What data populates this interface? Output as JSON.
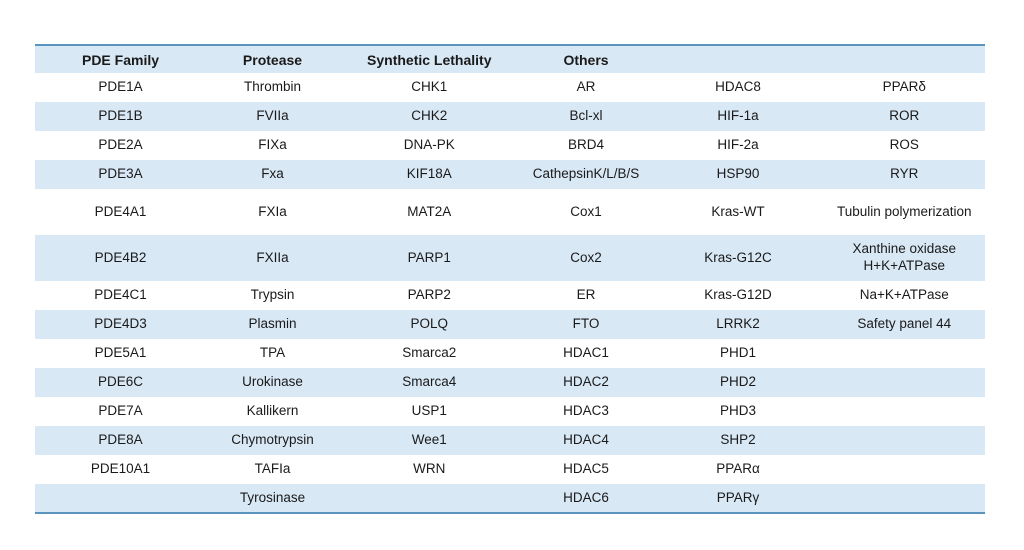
{
  "table": {
    "columns": [
      "PDE Family",
      "Protease",
      "Synthetic Lethality",
      "Others",
      "",
      ""
    ],
    "rows": [
      [
        "PDE1A",
        "Thrombin",
        "CHK1",
        "AR",
        "HDAC8",
        "PPARδ"
      ],
      [
        "PDE1B",
        "FVIIa",
        "CHK2",
        "Bcl-xl",
        "HIF-1a",
        "ROR"
      ],
      [
        "PDE2A",
        "FIXa",
        "DNA-PK",
        "BRD4",
        "HIF-2a",
        "ROS"
      ],
      [
        "PDE3A",
        "Fxa",
        "KIF18A",
        "CathepsinK/L/B/S",
        "HSP90",
        "RYR"
      ],
      [
        "PDE4A1",
        "FXIa",
        "MAT2A",
        "Cox1",
        "Kras-WT",
        "Tubulin polymerization"
      ],
      [
        "PDE4B2",
        "FXIIa",
        "PARP1",
        "Cox2",
        "Kras-G12C",
        "Xanthine oxidase\nH+K+ATPase"
      ],
      [
        "PDE4C1",
        "Trypsin",
        "PARP2",
        "ER",
        "Kras-G12D",
        "Na+K+ATPase"
      ],
      [
        "PDE4D3",
        "Plasmin",
        "POLQ",
        "FTO",
        "LRRK2",
        "Safety panel 44"
      ],
      [
        "PDE5A1",
        "TPA",
        "Smarca2",
        "HDAC1",
        "PHD1",
        ""
      ],
      [
        "PDE6C",
        "Urokinase",
        "Smarca4",
        "HDAC2",
        "PHD2",
        ""
      ],
      [
        "PDE7A",
        "Kallikern",
        "USP1",
        "HDAC3",
        "PHD3",
        ""
      ],
      [
        "PDE8A",
        "Chymotrypsin",
        "Wee1",
        "HDAC4",
        "SHP2",
        ""
      ],
      [
        "PDE10A1",
        "TAFIa",
        "WRN",
        "HDAC5",
        "PPARα",
        ""
      ],
      [
        "",
        "Tyrosinase",
        "",
        "HDAC6",
        "PPARγ",
        ""
      ]
    ],
    "layout_hints": {
      "tall_row_indices": [
        4,
        5
      ],
      "banded_row_color": "#d9e8f5",
      "border_color": "#5a94bf"
    }
  }
}
